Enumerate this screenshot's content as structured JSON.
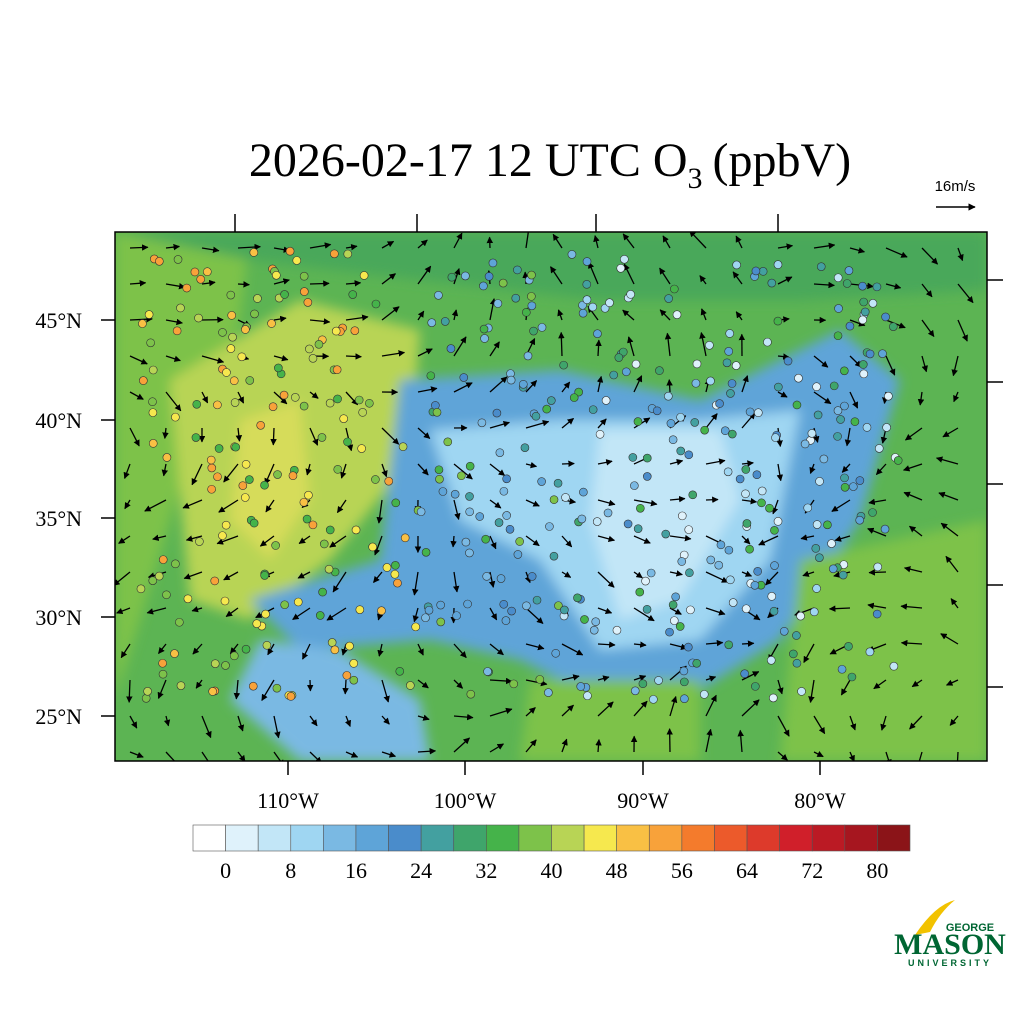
{
  "title_main": "2026-02-17 12 UTC O",
  "title_subscript": "3",
  "title_units": "(ppbV)",
  "wind_reference": "16m/s",
  "latitude_labels": [
    "45°N",
    "40°N",
    "35°N",
    "30°N",
    "25°N"
  ],
  "longitude_labels": [
    "110°W",
    "100°W",
    "90°W",
    "80°W"
  ],
  "colorbar": {
    "colors": [
      "#ffffff",
      "#dff2fb",
      "#c2e6f7",
      "#9fd6f2",
      "#7ab9e3",
      "#5ea4d8",
      "#4a8ccb",
      "#43a0a0",
      "#3fa56b",
      "#45b34a",
      "#7dc24a",
      "#b8d455",
      "#f6e84e",
      "#f9c044",
      "#f8a23a",
      "#f47b2c",
      "#ec5a2b",
      "#dd3a2b",
      "#d01f2a",
      "#bb1a24",
      "#a6161f",
      "#8b1418"
    ],
    "ticks": [
      0,
      8,
      16,
      24,
      32,
      40,
      48,
      56,
      64,
      72,
      80
    ]
  },
  "logo": {
    "top": "GEORGE",
    "main": "MASON",
    "bottom": "UNIVERSITY"
  }
}
